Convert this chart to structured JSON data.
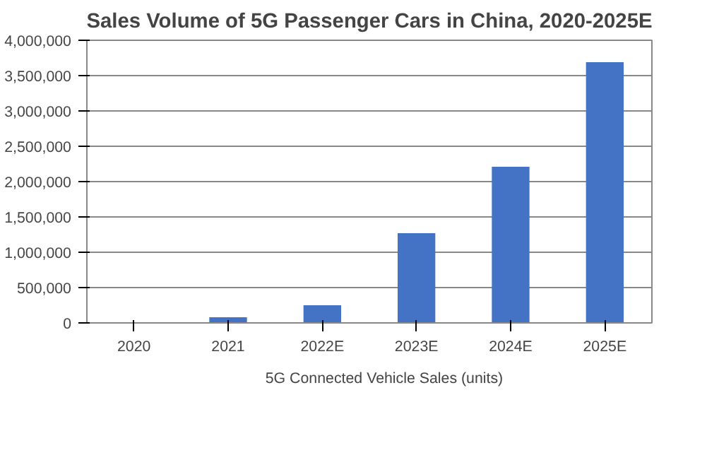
{
  "chart_data": {
    "type": "bar",
    "title": "Sales Volume of 5G Passenger Cars in China, 2020-2025E",
    "categories": [
      "2020",
      "2021",
      "2022E",
      "2023E",
      "2024E",
      "2025E"
    ],
    "series": [
      {
        "name": "5G Connected Vehicle Sales (units)",
        "color": "#4472c4",
        "values": [
          0,
          80000,
          250000,
          1270000,
          2210000,
          3690000
        ]
      }
    ],
    "ylim": [
      0,
      4000000
    ],
    "yticks": [
      {
        "value": 0,
        "label": "0"
      },
      {
        "value": 500000,
        "label": "500,000"
      },
      {
        "value": 1000000,
        "label": "1,000,000"
      },
      {
        "value": 1500000,
        "label": "1,500,000"
      },
      {
        "value": 2000000,
        "label": "2,000,000"
      },
      {
        "value": 2500000,
        "label": "2,500,000"
      },
      {
        "value": 3000000,
        "label": "3,000,000"
      },
      {
        "value": 3500000,
        "label": "3,500,000"
      },
      {
        "value": 4000000,
        "label": "4,000,000"
      }
    ],
    "grid": "y",
    "legend": "bottom"
  }
}
